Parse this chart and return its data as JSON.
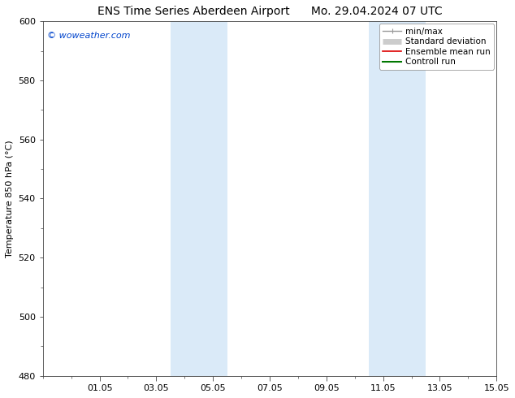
{
  "title_left": "ENS Time Series Aberdeen Airport",
  "title_right": "Mo. 29.04.2024 07 UTC",
  "ylabel": "Temperature 850 hPa (°C)",
  "watermark": "© woweather.com",
  "watermark_color": "#0044cc",
  "ylim": [
    480,
    600
  ],
  "yticks": [
    480,
    500,
    520,
    540,
    560,
    580,
    600
  ],
  "x_days": 16,
  "xtick_labels": [
    "01.05",
    "03.05",
    "05.05",
    "07.05",
    "09.05",
    "11.05",
    "13.05",
    "15.05"
  ],
  "xtick_positions": [
    2,
    4,
    6,
    8,
    10,
    12,
    14,
    16
  ],
  "shaded_bands": [
    {
      "x_start": 4.5,
      "x_end": 6.5
    },
    {
      "x_start": 11.5,
      "x_end": 13.5
    }
  ],
  "shade_color": "#daeaf8",
  "background_color": "#ffffff",
  "spine_color": "#444444",
  "legend_items": [
    {
      "label": "min/max",
      "color": "#999999",
      "lw": 1.0,
      "style": "minmax"
    },
    {
      "label": "Standard deviation",
      "color": "#cccccc",
      "lw": 5,
      "style": "band"
    },
    {
      "label": "Ensemble mean run",
      "color": "#dd0000",
      "lw": 1.2,
      "style": "line"
    },
    {
      "label": "Controll run",
      "color": "#007700",
      "lw": 1.5,
      "style": "line"
    }
  ],
  "title_fontsize": 10,
  "axis_fontsize": 8,
  "legend_fontsize": 7.5,
  "watermark_fontsize": 8
}
